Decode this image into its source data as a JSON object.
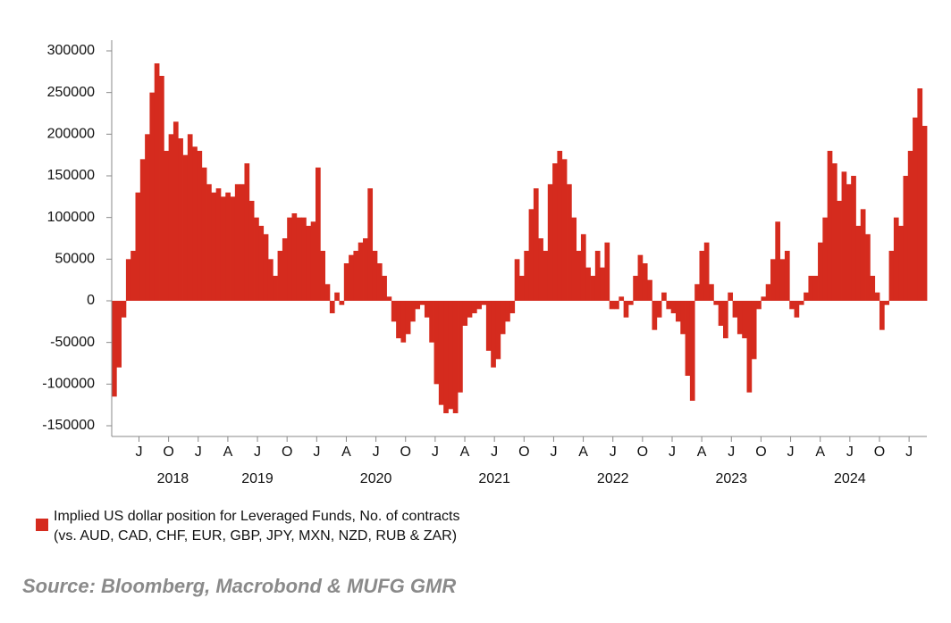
{
  "chart_data": {
    "type": "bar",
    "legend_label": "Implied US dollar position for Leveraged Funds, No. of contracts",
    "legend_label_2": "(vs. AUD, CAD, CHF, EUR, GBP, JPY, MXN, NZD, RUB & ZAR)",
    "source": "Source: Bloomberg, Macrobond & MUFG GMR",
    "color": "#d52b1e",
    "x": [
      2018.29,
      2018.33,
      2018.37,
      2018.41,
      2018.45,
      2018.49,
      2018.53,
      2018.57,
      2018.61,
      2018.65,
      2018.69,
      2018.73,
      2018.77,
      2018.81,
      2018.85,
      2018.89,
      2018.93,
      2018.97,
      2019.01,
      2019.05,
      2019.09,
      2019.13,
      2019.17,
      2019.21,
      2019.25,
      2019.29,
      2019.33,
      2019.37,
      2019.41,
      2019.45,
      2019.49,
      2019.53,
      2019.57,
      2019.61,
      2019.65,
      2019.69,
      2019.73,
      2019.77,
      2019.81,
      2019.85,
      2019.89,
      2019.93,
      2019.97,
      2020.01,
      2020.05,
      2020.09,
      2020.13,
      2020.17,
      2020.21,
      2020.25,
      2020.29,
      2020.33,
      2020.37,
      2020.41,
      2020.45,
      2020.49,
      2020.53,
      2020.57,
      2020.61,
      2020.65,
      2020.69,
      2020.73,
      2020.77,
      2020.81,
      2020.85,
      2020.89,
      2020.93,
      2020.97,
      2021.01,
      2021.05,
      2021.09,
      2021.13,
      2021.17,
      2021.21,
      2021.25,
      2021.29,
      2021.33,
      2021.37,
      2021.41,
      2021.45,
      2021.49,
      2021.53,
      2021.57,
      2021.61,
      2021.65,
      2021.69,
      2021.73,
      2021.77,
      2021.81,
      2021.85,
      2021.89,
      2021.93,
      2021.97,
      2022.01,
      2022.05,
      2022.09,
      2022.13,
      2022.17,
      2022.21,
      2022.25,
      2022.29,
      2022.33,
      2022.37,
      2022.41,
      2022.45,
      2022.49,
      2022.53,
      2022.57,
      2022.61,
      2022.65,
      2022.69,
      2022.73,
      2022.77,
      2022.81,
      2022.85,
      2022.89,
      2022.93,
      2022.97,
      2023.01,
      2023.05,
      2023.09,
      2023.13,
      2023.17,
      2023.21,
      2023.25,
      2023.29,
      2023.33,
      2023.37,
      2023.41,
      2023.45,
      2023.49,
      2023.53,
      2023.57,
      2023.61,
      2023.65,
      2023.69,
      2023.73,
      2023.77,
      2023.81,
      2023.85,
      2023.89,
      2023.93,
      2023.97,
      2024.01,
      2024.05,
      2024.09,
      2024.13,
      2024.17,
      2024.21,
      2024.25,
      2024.29,
      2024.33,
      2024.37,
      2024.41,
      2024.45,
      2024.49,
      2024.53,
      2024.57,
      2024.61,
      2024.65,
      2024.69,
      2024.73,
      2024.77,
      2024.81,
      2024.85,
      2024.89,
      2024.93,
      2024.97,
      2025.01,
      2025.05,
      2025.09,
      2025.13
    ],
    "values": [
      -115000,
      -80000,
      -20000,
      50000,
      60000,
      130000,
      170000,
      200000,
      250000,
      285000,
      270000,
      180000,
      200000,
      215000,
      195000,
      175000,
      200000,
      185000,
      180000,
      160000,
      140000,
      130000,
      135000,
      125000,
      130000,
      125000,
      140000,
      140000,
      165000,
      120000,
      100000,
      90000,
      80000,
      50000,
      30000,
      60000,
      75000,
      100000,
      105000,
      100000,
      100000,
      90000,
      95000,
      160000,
      60000,
      20000,
      -15000,
      10000,
      -5000,
      45000,
      55000,
      60000,
      70000,
      75000,
      135000,
      60000,
      45000,
      30000,
      5000,
      -25000,
      -45000,
      -50000,
      -40000,
      -25000,
      -10000,
      -5000,
      -20000,
      -50000,
      -100000,
      -125000,
      -135000,
      -130000,
      -135000,
      -110000,
      -30000,
      -20000,
      -15000,
      -10000,
      -5000,
      -60000,
      -80000,
      -70000,
      -40000,
      -25000,
      -15000,
      50000,
      30000,
      60000,
      110000,
      135000,
      75000,
      60000,
      140000,
      165000,
      180000,
      170000,
      140000,
      100000,
      60000,
      80000,
      40000,
      30000,
      60000,
      40000,
      70000,
      -10000,
      -10000,
      5000,
      -20000,
      -5000,
      30000,
      55000,
      45000,
      25000,
      -35000,
      -20000,
      10000,
      -10000,
      -15000,
      -25000,
      -40000,
      -90000,
      -120000,
      20000,
      60000,
      70000,
      20000,
      -5000,
      -30000,
      -45000,
      10000,
      -20000,
      -40000,
      -45000,
      -110000,
      -70000,
      -10000,
      5000,
      20000,
      50000,
      95000,
      50000,
      60000,
      -10000,
      -20000,
      -5000,
      10000,
      30000,
      30000,
      70000,
      100000,
      180000,
      165000,
      120000,
      155000,
      140000,
      150000,
      90000,
      110000,
      80000,
      30000,
      10000,
      -35000,
      -5000,
      60000,
      100000,
      90000,
      150000,
      180000,
      220000,
      255000,
      210000
    ],
    "xlim": [
      2018.27,
      2025.15
    ],
    "ylim": [
      -150000,
      300000
    ],
    "yticks": [
      -150000,
      -100000,
      -50000,
      0,
      50000,
      100000,
      150000,
      200000,
      250000,
      300000
    ],
    "xticks": [
      {
        "value": 2018.5,
        "label": "J"
      },
      {
        "value": 2018.75,
        "label": "O"
      },
      {
        "value": 2019.0,
        "label": "J"
      },
      {
        "value": 2019.25,
        "label": "A"
      },
      {
        "value": 2019.5,
        "label": "J"
      },
      {
        "value": 2019.75,
        "label": "O"
      },
      {
        "value": 2020.0,
        "label": "J"
      },
      {
        "value": 2020.25,
        "label": "A"
      },
      {
        "value": 2020.5,
        "label": "J"
      },
      {
        "value": 2020.75,
        "label": "O"
      },
      {
        "value": 2021.0,
        "label": "J"
      },
      {
        "value": 2021.25,
        "label": "A"
      },
      {
        "value": 2021.5,
        "label": "J"
      },
      {
        "value": 2021.75,
        "label": "O"
      },
      {
        "value": 2022.0,
        "label": "J"
      },
      {
        "value": 2022.25,
        "label": "A"
      },
      {
        "value": 2022.5,
        "label": "J"
      },
      {
        "value": 2022.75,
        "label": "O"
      },
      {
        "value": 2023.0,
        "label": "J"
      },
      {
        "value": 2023.25,
        "label": "A"
      },
      {
        "value": 2023.5,
        "label": "J"
      },
      {
        "value": 2023.75,
        "label": "O"
      },
      {
        "value": 2024.0,
        "label": "J"
      },
      {
        "value": 2024.25,
        "label": "A"
      },
      {
        "value": 2024.5,
        "label": "J"
      },
      {
        "value": 2024.75,
        "label": "O"
      },
      {
        "value": 2025.0,
        "label": "J"
      }
    ],
    "year_ticks": [
      2018,
      2019,
      2020,
      2021,
      2022,
      2023,
      2024
    ]
  }
}
